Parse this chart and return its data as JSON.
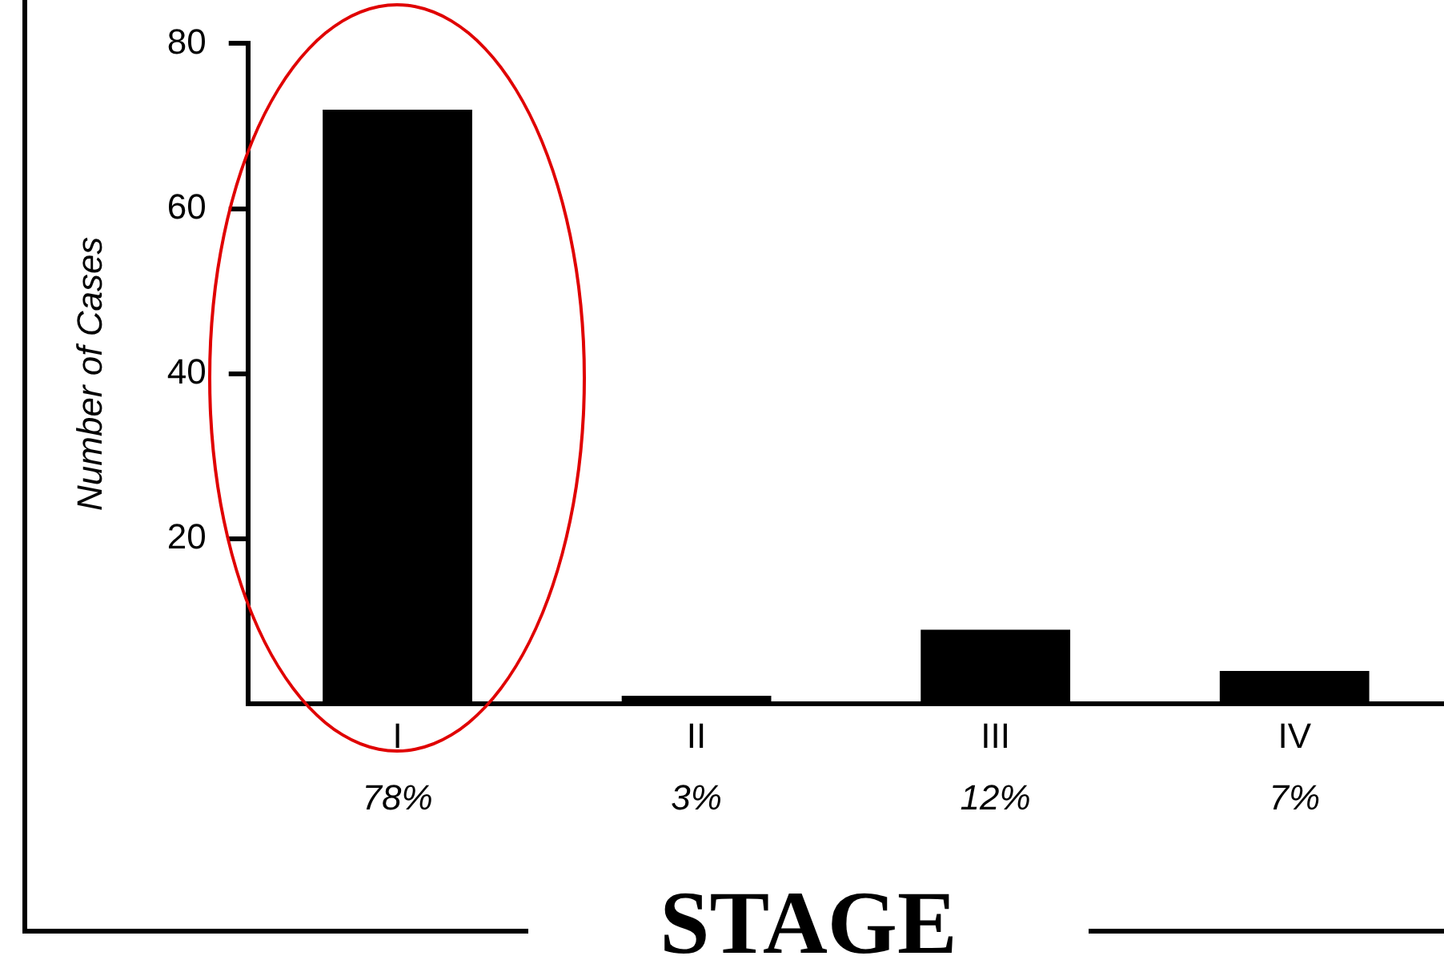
{
  "chart_data": {
    "type": "bar",
    "xlabel": "STAGE",
    "ylabel": "Number of Cases",
    "categories": [
      "I",
      "II",
      "III",
      "IV"
    ],
    "values": [
      72,
      1,
      9,
      4
    ],
    "annotations": [
      "78%",
      "3%",
      "12%",
      "7%"
    ],
    "color": "#000000",
    "ylim": [
      0,
      80
    ],
    "yticks": [
      20,
      40,
      60,
      80
    ],
    "legend": false
  }
}
